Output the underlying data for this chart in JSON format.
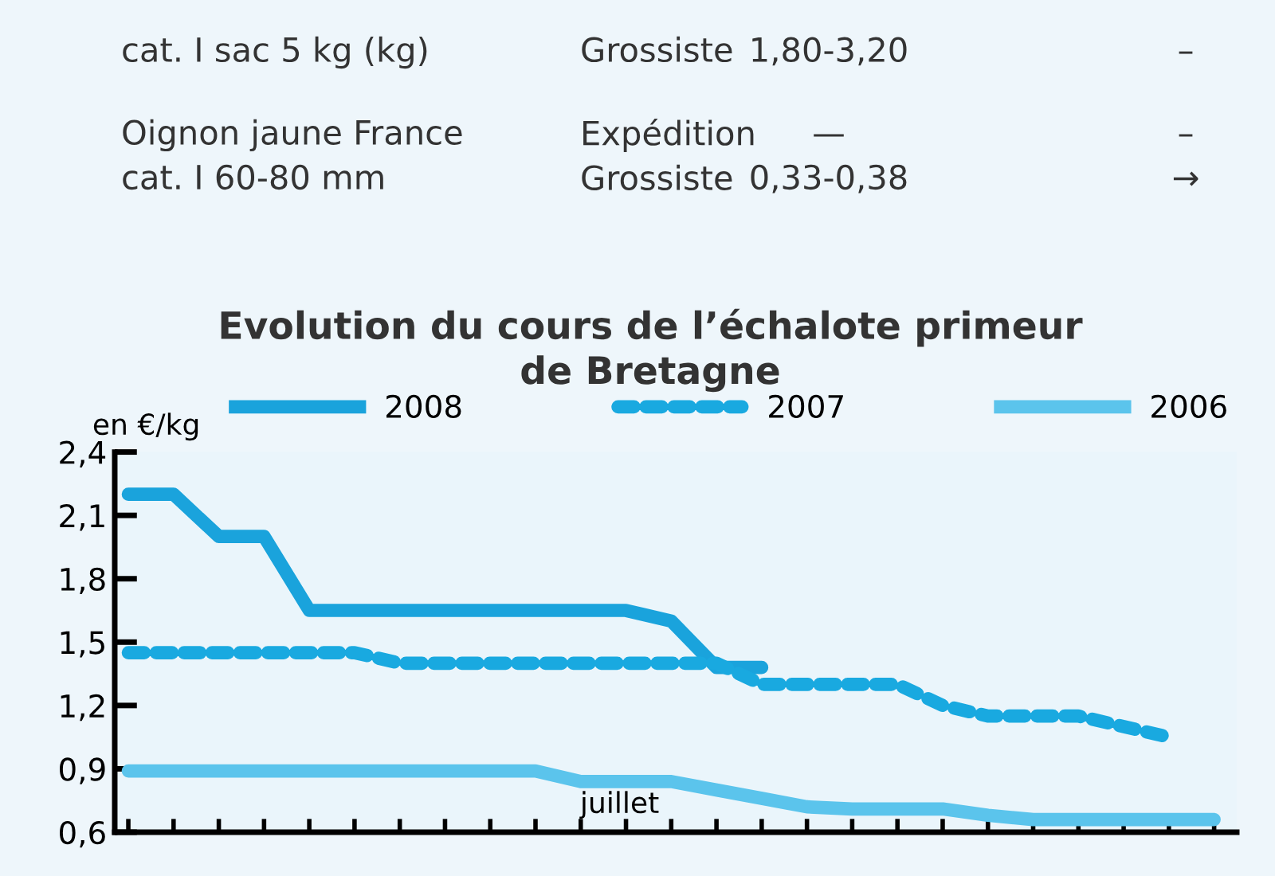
{
  "chart_data": {
    "type": "line",
    "title": "Evolution du cours de l’échalote primeur\nde Bretagne",
    "ylabel": "en €/kg",
    "annotations": [
      "cat. I sac 5 kg (kg)",
      "Grossiste",
      "1,80-3,20",
      "–",
      "Oignon jaune France\ncat. I 60-80 mm",
      "Expédition\nGrossiste",
      "—\n0,33-0,38",
      "–\n→",
      "juillet"
    ],
    "categories": [
      null,
      null,
      null,
      null,
      null,
      null,
      null,
      null,
      null,
      null,
      null,
      null,
      null,
      null,
      null,
      null,
      null,
      null,
      null,
      null,
      null,
      null,
      null,
      null,
      null
    ],
    "series": [
      {
        "name": "2008",
        "color": "#1aa3dc",
        "line_style": "solid",
        "values": [
          2.2,
          2.2,
          2.0,
          2.0,
          1.65,
          1.65,
          1.65,
          1.65,
          1.65,
          1.65,
          1.65,
          1.65,
          1.6,
          1.38,
          1.38,
          null,
          null,
          null,
          null,
          null,
          null,
          null,
          null,
          null,
          null
        ]
      },
      {
        "name": "2007",
        "color": "#19a9e0",
        "line_style": "dashed",
        "values": [
          1.45,
          1.45,
          1.45,
          1.45,
          1.45,
          1.45,
          1.4,
          1.4,
          1.4,
          1.4,
          1.4,
          1.4,
          1.4,
          1.4,
          1.3,
          1.3,
          1.3,
          1.3,
          1.2,
          1.15,
          1.15,
          1.15,
          1.1,
          1.05,
          null
        ]
      },
      {
        "name": "2006",
        "color": "#5bc4ec",
        "line_style": "solid",
        "values": [
          0.89,
          0.89,
          0.89,
          0.89,
          0.89,
          0.89,
          0.89,
          0.89,
          0.89,
          0.89,
          0.84,
          0.84,
          0.84,
          0.8,
          0.76,
          0.72,
          0.71,
          0.71,
          0.71,
          0.68,
          0.66,
          0.66,
          0.66,
          0.66,
          0.66
        ]
      }
    ],
    "ylim": [
      0.6,
      2.4
    ],
    "yticks": [
      {
        "value": 0.6,
        "label": "0,6"
      },
      {
        "value": 0.9,
        "label": "0,9"
      },
      {
        "value": 1.2,
        "label": "1,2"
      },
      {
        "value": 1.5,
        "label": "1,5"
      },
      {
        "value": 1.8,
        "label": "1,8"
      },
      {
        "value": 2.1,
        "label": "2,1"
      },
      {
        "value": 2.4,
        "label": "2,4"
      }
    ],
    "tick_labels": "y",
    "legend": "top",
    "grid": false
  }
}
